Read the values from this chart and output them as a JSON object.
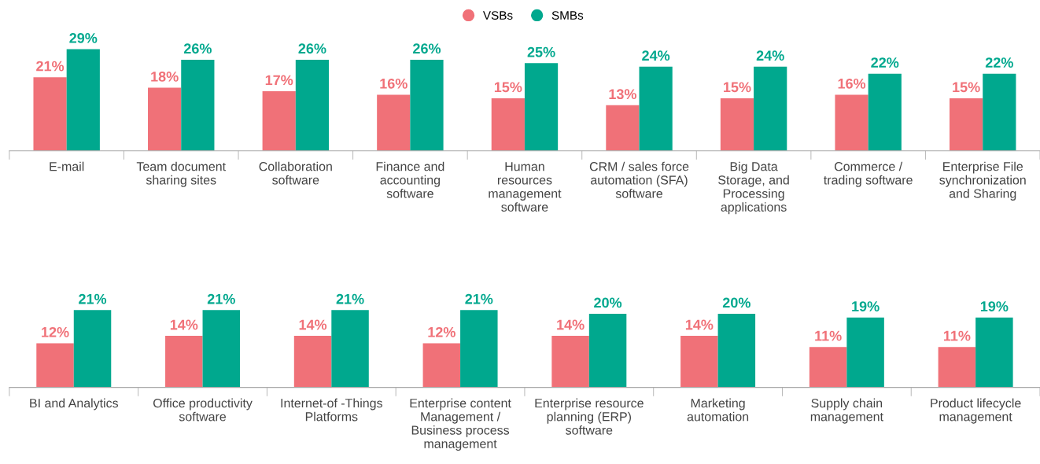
{
  "chart_data": [
    {
      "type": "bar",
      "legend": "top",
      "categories": [
        "E-mail",
        "Team document\nsharing sites",
        "Collaboration\nsoftware",
        "Finance and\naccounting\nsoftware",
        "Human\nresources\nmanagement\nsoftware",
        "CRM / sales force\nautomation (SFA)\nsoftware",
        "Big Data\nStorage, and\nProcessing\napplications",
        "Commerce /\ntrading software",
        "Enterprise File\nsynchronization\nand Sharing"
      ],
      "series": [
        {
          "name": "VSBs",
          "color": "#f07178",
          "values": [
            21,
            18,
            17,
            16,
            15,
            13,
            15,
            16,
            15
          ],
          "value_labels": [
            "21%",
            "18%",
            "17%",
            "16%",
            "15%",
            "13%",
            "15%",
            "16%",
            "15%"
          ]
        },
        {
          "name": "SMBs",
          "color": "#00a88e",
          "values": [
            29,
            26,
            26,
            26,
            25,
            24,
            24,
            22,
            22
          ],
          "value_labels": [
            "29%",
            "26%",
            "26%",
            "26%",
            "25%",
            "24%",
            "24%",
            "22%",
            "22%"
          ]
        }
      ]
    },
    {
      "type": "bar",
      "categories": [
        "BI and Analytics",
        "Office productivity\nsoftware",
        "Internet-of -Things\nPlatforms",
        "Enterprise content\nManagement /\nBusiness process\nmanagement",
        "Enterprise resource\nplanning (ERP)\nsoftware",
        "Marketing\nautomation",
        "Supply chain\nmanagement",
        "Product lifecycle\nmanagement"
      ],
      "series": [
        {
          "color": "#f07178",
          "values": [
            12,
            14,
            14,
            12,
            14,
            14,
            11,
            11
          ],
          "value_labels": [
            "12%",
            "14%",
            "14%",
            "12%",
            "14%",
            "14%",
            "11%",
            "11%"
          ]
        },
        {
          "color": "#00a88e",
          "values": [
            21,
            21,
            21,
            21,
            20,
            20,
            19,
            19
          ],
          "value_labels": [
            "21%",
            "21%",
            "21%",
            "21%",
            "20%",
            "20%",
            "19%",
            "19%"
          ]
        }
      ]
    }
  ]
}
